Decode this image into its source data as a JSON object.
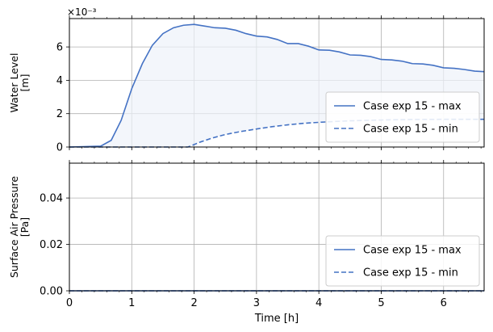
{
  "chart_data": [
    {
      "type": "line",
      "ylabel_lines": [
        "Water Level",
        "[m]"
      ],
      "y_scale_note": "×10⁻³",
      "xlim": [
        0,
        6.65
      ],
      "ylim": [
        0,
        7.7
      ],
      "yticks": [
        0,
        2,
        4,
        6
      ],
      "xticks": [
        0,
        1,
        2,
        3,
        4,
        5,
        6
      ],
      "grid": true,
      "legend_position": "lower right",
      "fill_between_min_max": true,
      "series": [
        {
          "name": "Case exp 15 - max",
          "style": "solid",
          "color": "#4472c4",
          "x": [
            0,
            0.5,
            0.67,
            0.83,
            1.0,
            1.17,
            1.33,
            1.5,
            1.67,
            1.83,
            2.0,
            2.17,
            2.33,
            2.5,
            2.67,
            2.83,
            3.0,
            3.17,
            3.33,
            3.5,
            3.67,
            3.83,
            4.0,
            4.17,
            4.33,
            4.5,
            4.67,
            4.83,
            5.0,
            5.17,
            5.33,
            5.5,
            5.67,
            5.83,
            6.0,
            6.17,
            6.33,
            6.5,
            6.65
          ],
          "values": [
            0,
            0.05,
            0.4,
            1.6,
            3.5,
            5.0,
            6.1,
            6.8,
            7.15,
            7.3,
            7.35,
            7.25,
            7.15,
            7.12,
            7.0,
            6.8,
            6.65,
            6.6,
            6.45,
            6.2,
            6.2,
            6.05,
            5.82,
            5.8,
            5.7,
            5.52,
            5.5,
            5.42,
            5.25,
            5.22,
            5.15,
            5.0,
            4.98,
            4.9,
            4.75,
            4.72,
            4.65,
            4.55,
            4.52
          ]
        },
        {
          "name": "Case exp 15 - min",
          "style": "dashed",
          "color": "#4472c4",
          "x": [
            0,
            1.9,
            2.1,
            2.3,
            2.5,
            2.75,
            3.0,
            3.25,
            3.5,
            3.75,
            4.0,
            4.25,
            4.5,
            5.0,
            5.5,
            6.0,
            6.65
          ],
          "values": [
            0,
            0,
            0.3,
            0.55,
            0.75,
            0.93,
            1.08,
            1.22,
            1.33,
            1.42,
            1.48,
            1.53,
            1.57,
            1.62,
            1.65,
            1.66,
            1.66
          ]
        }
      ]
    },
    {
      "type": "line",
      "ylabel_lines": [
        "Surface Air Pressure",
        "[Pa]"
      ],
      "xlabel": "Time [h]",
      "xlim": [
        0,
        6.65
      ],
      "ylim": [
        0,
        0.055
      ],
      "yticks": [
        0.0,
        0.02,
        0.04
      ],
      "ytick_labels": [
        "0.00",
        "0.02",
        "0.04"
      ],
      "xticks": [
        0,
        1,
        2,
        3,
        4,
        5,
        6
      ],
      "grid": true,
      "legend_position": "lower right",
      "series": [
        {
          "name": "Case exp 15 - max",
          "style": "solid",
          "color": "#4472c4",
          "x": [
            0,
            6.65
          ],
          "values": [
            0,
            0
          ]
        },
        {
          "name": "Case exp 15 - min",
          "style": "dashed",
          "color": "#4472c4",
          "x": [
            0,
            6.65
          ],
          "values": [
            0,
            0
          ]
        }
      ]
    }
  ]
}
